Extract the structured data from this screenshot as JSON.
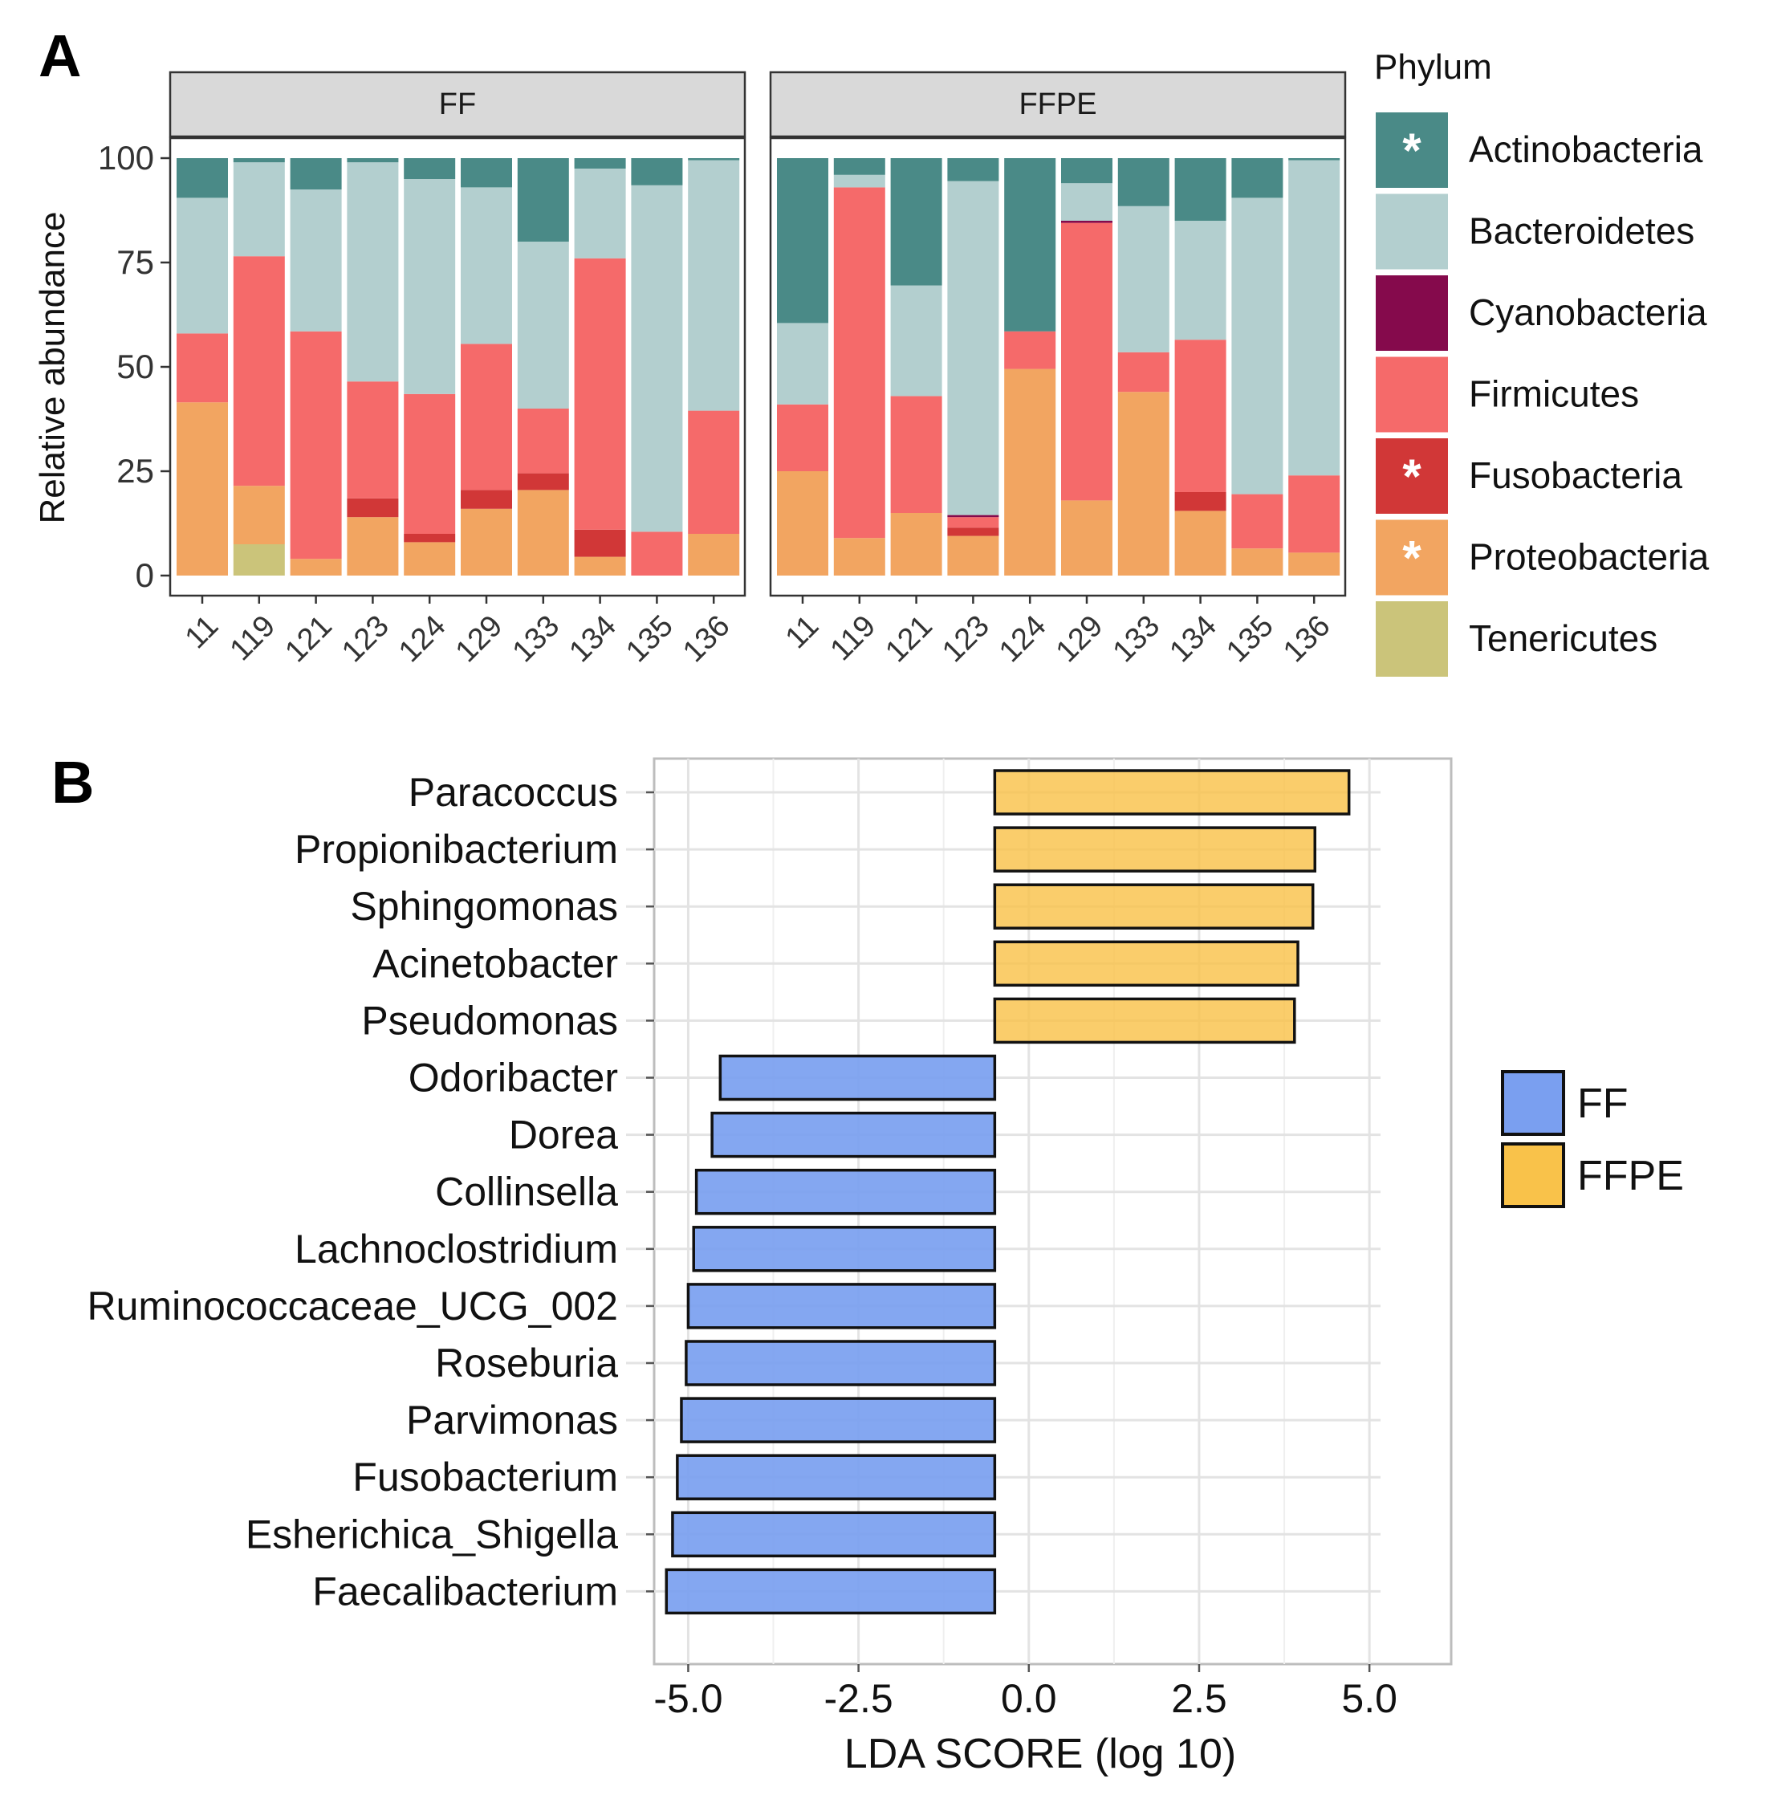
{
  "figure": {
    "panel_a_label": "A",
    "panel_b_label": "B"
  },
  "chart_data": [
    {
      "type": "bar",
      "stacked": true,
      "title": "",
      "ylabel": "Relative abundance",
      "xlabel": "",
      "ylim": [
        0,
        100
      ],
      "yticks": [
        0,
        25,
        50,
        75,
        100
      ],
      "categories": [
        "11",
        "119",
        "121",
        "123",
        "124",
        "129",
        "133",
        "134",
        "135",
        "136"
      ],
      "stack_order": [
        "Tenericutes",
        "Proteobacteria",
        "Fusobacteria",
        "Firmicutes",
        "Cyanobacteria",
        "Bacteroidetes",
        "Actinobacteria"
      ],
      "legend": {
        "title": "Phylum",
        "position": "right",
        "items": [
          {
            "name": "Actinobacteria",
            "color": "#4a8a87",
            "mark": "*",
            "mark_color": "#ffffff"
          },
          {
            "name": "Bacteroidetes",
            "color": "#b3cfcf",
            "mark": "",
            "mark_color": "#ffffff"
          },
          {
            "name": "Cyanobacteria",
            "color": "#850a4c",
            "mark": "",
            "mark_color": "#ffffff"
          },
          {
            "name": "Firmicutes",
            "color": "#f56a6a",
            "mark": "",
            "mark_color": "#ffffff"
          },
          {
            "name": "Fusobacteria",
            "color": "#d13737",
            "mark": "*",
            "mark_color": "#ffffff"
          },
          {
            "name": "Proteobacteria",
            "color": "#f2a561",
            "mark": "*",
            "mark_color": "#ffffff"
          },
          {
            "name": "Tenericutes",
            "color": "#cbc47a",
            "mark": "",
            "mark_color": "#ffffff"
          }
        ]
      },
      "facets": [
        {
          "name": "FF",
          "series": [
            {
              "name": "Tenericutes",
              "values": [
                0,
                7.5,
                0,
                0,
                0,
                0,
                0,
                0,
                0,
                0
              ]
            },
            {
              "name": "Proteobacteria",
              "values": [
                41.5,
                14,
                4,
                14,
                8,
                16,
                20.5,
                4.5,
                0,
                10
              ]
            },
            {
              "name": "Fusobacteria",
              "values": [
                0,
                0,
                0,
                4.5,
                2,
                4.5,
                4,
                6.5,
                0,
                0
              ]
            },
            {
              "name": "Firmicutes",
              "values": [
                16.5,
                55,
                54.5,
                28,
                33.5,
                35,
                15.5,
                65,
                10.5,
                29.5
              ]
            },
            {
              "name": "Cyanobacteria",
              "values": [
                0,
                0,
                0,
                0,
                0,
                0,
                0,
                0,
                0,
                0
              ]
            },
            {
              "name": "Bacteroidetes",
              "values": [
                32.5,
                22.5,
                34,
                52.5,
                51.5,
                37.5,
                40,
                21.5,
                83,
                60
              ]
            },
            {
              "name": "Actinobacteria",
              "values": [
                9.5,
                1,
                7.5,
                1,
                5,
                7,
                20,
                2.5,
                6.5,
                0.5
              ]
            }
          ]
        },
        {
          "name": "FFPE",
          "series": [
            {
              "name": "Tenericutes",
              "values": [
                0,
                0,
                0,
                0,
                0,
                0,
                0,
                0,
                0,
                0
              ]
            },
            {
              "name": "Proteobacteria",
              "values": [
                25,
                9,
                15,
                9.5,
                49.5,
                18,
                44,
                15.5,
                6.5,
                5.5
              ]
            },
            {
              "name": "Fusobacteria",
              "values": [
                0,
                0,
                0,
                2,
                0,
                0,
                0,
                4.5,
                0,
                0
              ]
            },
            {
              "name": "Firmicutes",
              "values": [
                16,
                84,
                28,
                2.5,
                9,
                66.5,
                9.5,
                36.5,
                13,
                18.5
              ]
            },
            {
              "name": "Cyanobacteria",
              "values": [
                0,
                0,
                0,
                0.5,
                0,
                0.5,
                0,
                0,
                0,
                0
              ]
            },
            {
              "name": "Bacteroidetes",
              "values": [
                19.5,
                3,
                26.5,
                80,
                0,
                9,
                35,
                28.5,
                71,
                75.5
              ]
            },
            {
              "name": "Actinobacteria",
              "values": [
                39.5,
                4,
                30.5,
                5.5,
                41.5,
                6,
                11.5,
                15,
                9.5,
                0.5
              ]
            }
          ]
        }
      ]
    },
    {
      "type": "bar",
      "orientation": "horizontal",
      "title": "",
      "xlabel": "LDA SCORE (log 10)",
      "ylabel": "",
      "xlim": [
        -5.5,
        6.2
      ],
      "xticks": [
        -5.0,
        -2.5,
        0.0,
        2.5,
        5.0
      ],
      "xtick_labels": [
        "-5.0",
        "-2.5",
        "0.0",
        "2.5",
        "5.0"
      ],
      "baseline": -0.5,
      "legend": {
        "position": "right",
        "items": [
          {
            "name": "FF",
            "color": "#7a9ff0"
          },
          {
            "name": "FFPE",
            "color": "#f9c24a"
          }
        ]
      },
      "categories": [
        "Paracoccus",
        "Propionibacterium",
        "Sphingomonas",
        "Acinetobacter",
        "Pseudomonas",
        "Odoribacter",
        "Dorea",
        "Collinsella",
        "Lachnoclostridium",
        "Ruminococcaceae_UCG_002",
        "Roseburia",
        "Parvimonas",
        "Fusobacterium",
        "Esherichica_Shigella",
        "Faecalibacterium"
      ],
      "values": [
        4.7,
        4.2,
        4.17,
        3.95,
        3.9,
        -4.53,
        -4.65,
        -4.88,
        -4.92,
        -5.0,
        -5.03,
        -5.1,
        -5.16,
        -5.23,
        -5.32
      ],
      "groups": [
        "FFPE",
        "FFPE",
        "FFPE",
        "FFPE",
        "FFPE",
        "FF",
        "FF",
        "FF",
        "FF",
        "FF",
        "FF",
        "FF",
        "FF",
        "FF",
        "FF"
      ]
    }
  ]
}
